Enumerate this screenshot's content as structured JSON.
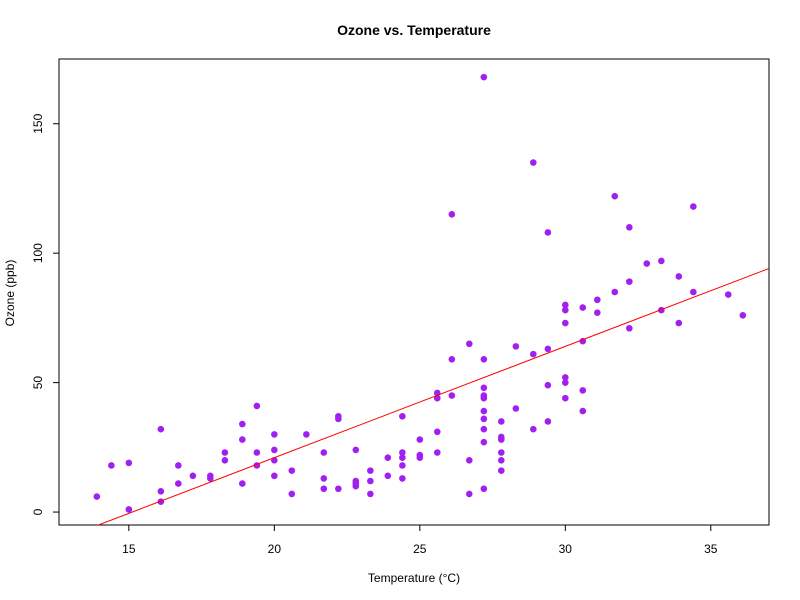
{
  "chart_data": {
    "type": "scatter",
    "title": "Ozone vs. Temperature",
    "xlabel": "Temperature (°C)",
    "ylabel": "Ozone (ppb)",
    "xlim": [
      12.6,
      37.0
    ],
    "ylim": [
      -5,
      175
    ],
    "x_ticks": [
      15,
      20,
      25,
      30,
      35
    ],
    "y_ticks": [
      0,
      50,
      100,
      150
    ],
    "grid": false,
    "legend": "none",
    "point_color": "#a020f0",
    "line_color": "#ff0000",
    "regression_line": {
      "slope": 4.3,
      "intercept": -65.0
    },
    "points": [
      [
        13.9,
        6
      ],
      [
        14.4,
        18
      ],
      [
        15.0,
        19
      ],
      [
        15.0,
        1
      ],
      [
        16.1,
        32
      ],
      [
        16.1,
        8
      ],
      [
        16.1,
        4
      ],
      [
        16.7,
        18
      ],
      [
        16.7,
        11
      ],
      [
        17.2,
        14
      ],
      [
        17.8,
        13
      ],
      [
        17.8,
        14
      ],
      [
        18.3,
        23
      ],
      [
        18.3,
        20
      ],
      [
        18.9,
        34
      ],
      [
        18.9,
        28
      ],
      [
        18.9,
        11
      ],
      [
        19.4,
        41
      ],
      [
        19.4,
        23
      ],
      [
        19.4,
        18
      ],
      [
        20.0,
        30
      ],
      [
        20.0,
        24
      ],
      [
        20.0,
        20
      ],
      [
        20.0,
        14
      ],
      [
        20.6,
        16
      ],
      [
        20.6,
        7
      ],
      [
        21.1,
        30
      ],
      [
        21.7,
        23
      ],
      [
        21.7,
        13
      ],
      [
        21.7,
        9
      ],
      [
        22.2,
        37
      ],
      [
        22.2,
        36
      ],
      [
        22.2,
        9
      ],
      [
        22.8,
        24
      ],
      [
        22.8,
        12
      ],
      [
        22.8,
        11
      ],
      [
        22.8,
        10
      ],
      [
        23.3,
        16
      ],
      [
        23.3,
        12
      ],
      [
        23.3,
        7
      ],
      [
        23.9,
        21
      ],
      [
        23.9,
        14
      ],
      [
        24.4,
        37
      ],
      [
        24.4,
        23
      ],
      [
        24.4,
        21
      ],
      [
        24.4,
        18
      ],
      [
        24.4,
        13
      ],
      [
        25.0,
        28
      ],
      [
        25.0,
        22
      ],
      [
        25.0,
        21
      ],
      [
        25.6,
        46
      ],
      [
        25.6,
        44
      ],
      [
        25.6,
        31
      ],
      [
        25.6,
        23
      ],
      [
        26.1,
        115
      ],
      [
        26.1,
        59
      ],
      [
        26.1,
        45
      ],
      [
        26.7,
        65
      ],
      [
        26.7,
        20
      ],
      [
        26.7,
        7
      ],
      [
        27.2,
        168
      ],
      [
        27.2,
        59
      ],
      [
        27.2,
        48
      ],
      [
        27.2,
        45
      ],
      [
        27.2,
        44
      ],
      [
        27.2,
        39
      ],
      [
        27.2,
        36
      ],
      [
        27.2,
        32
      ],
      [
        27.2,
        27
      ],
      [
        27.2,
        9
      ],
      [
        27.8,
        35
      ],
      [
        27.8,
        29
      ],
      [
        27.8,
        28
      ],
      [
        27.8,
        23
      ],
      [
        27.8,
        20
      ],
      [
        27.8,
        16
      ],
      [
        28.3,
        64
      ],
      [
        28.3,
        40
      ],
      [
        28.9,
        135
      ],
      [
        28.9,
        61
      ],
      [
        28.9,
        32
      ],
      [
        29.4,
        108
      ],
      [
        29.4,
        63
      ],
      [
        29.4,
        49
      ],
      [
        29.4,
        35
      ],
      [
        30.0,
        80
      ],
      [
        30.0,
        78
      ],
      [
        30.0,
        73
      ],
      [
        30.0,
        52
      ],
      [
        30.0,
        50
      ],
      [
        30.0,
        44
      ],
      [
        30.6,
        79
      ],
      [
        30.6,
        66
      ],
      [
        30.6,
        47
      ],
      [
        30.6,
        39
      ],
      [
        31.1,
        82
      ],
      [
        31.1,
        77
      ],
      [
        31.7,
        122
      ],
      [
        31.7,
        85
      ],
      [
        32.2,
        110
      ],
      [
        32.2,
        89
      ],
      [
        32.2,
        71
      ],
      [
        32.8,
        96
      ],
      [
        33.3,
        97
      ],
      [
        33.3,
        78
      ],
      [
        33.9,
        91
      ],
      [
        33.9,
        73
      ],
      [
        34.4,
        118
      ],
      [
        34.4,
        85
      ],
      [
        35.6,
        84
      ],
      [
        36.1,
        76
      ]
    ]
  }
}
